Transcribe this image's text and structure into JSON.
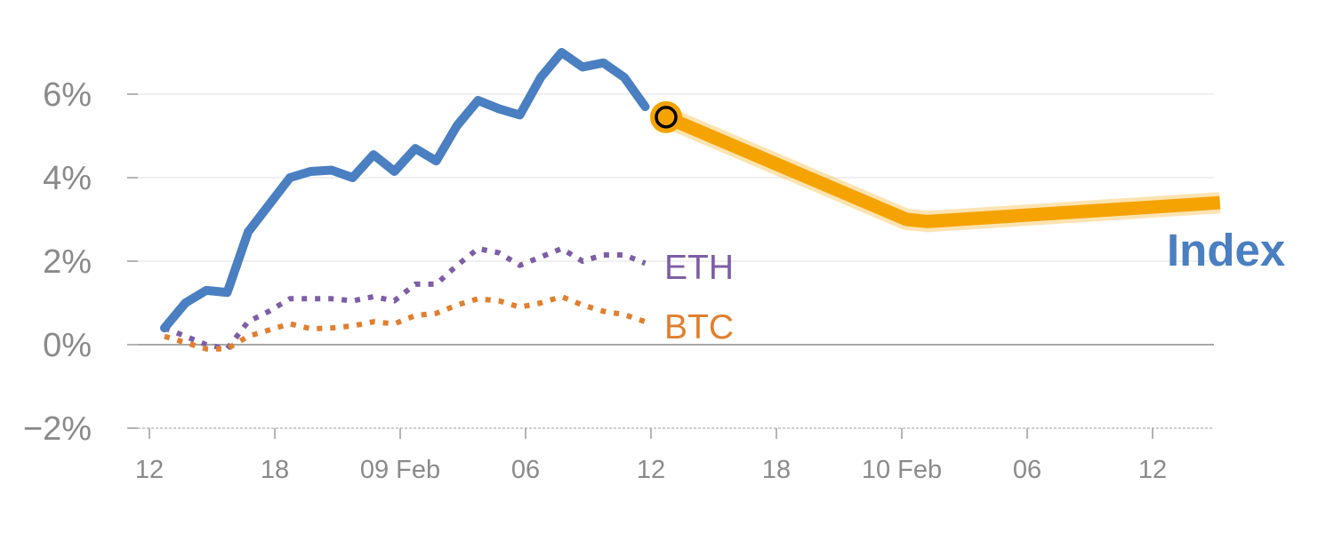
{
  "chart_data": {
    "type": "line",
    "title": "",
    "xlabel": "",
    "ylabel": "",
    "ylim": [
      -2,
      7.5
    ],
    "grid": true,
    "x_tick_labels": [
      "12",
      "18",
      "09 Feb",
      "06",
      "12",
      "18",
      "10 Feb",
      "06",
      "12"
    ],
    "y_ticks": [
      -2,
      0,
      2,
      4,
      6
    ],
    "y_tick_labels": [
      "−2%",
      "0%",
      "2%",
      "4%",
      "6%"
    ],
    "x_index": [
      0,
      1,
      2,
      3,
      4,
      5,
      6,
      7,
      8,
      9,
      10,
      11,
      12,
      13,
      14,
      15,
      16,
      17,
      18,
      19,
      20,
      21,
      22,
      23
    ],
    "series": [
      {
        "name": "Index",
        "color": "#4a7fc1",
        "style": "solid",
        "values": [
          0.4,
          1.0,
          1.3,
          1.25,
          2.7,
          3.35,
          4.0,
          4.15,
          4.18,
          4.0,
          4.55,
          4.15,
          4.7,
          4.4,
          5.25,
          5.85,
          5.65,
          5.5,
          6.4,
          7.0,
          6.65,
          6.75,
          6.4,
          5.7
        ]
      },
      {
        "name": "ETH",
        "color": "#7d5ea6",
        "style": "dotted",
        "values": [
          0.4,
          0.2,
          0.0,
          -0.1,
          0.55,
          0.8,
          1.1,
          1.1,
          1.1,
          1.05,
          1.15,
          1.05,
          1.45,
          1.45,
          1.9,
          2.3,
          2.2,
          1.9,
          2.1,
          2.3,
          2.0,
          2.15,
          2.15,
          1.95
        ]
      },
      {
        "name": "BTC",
        "color": "#e07f2f",
        "style": "dotted",
        "values": [
          0.2,
          0.05,
          -0.1,
          -0.1,
          0.2,
          0.35,
          0.5,
          0.38,
          0.4,
          0.45,
          0.55,
          0.5,
          0.7,
          0.75,
          0.95,
          1.1,
          1.05,
          0.9,
          1.0,
          1.15,
          0.95,
          0.8,
          0.72,
          0.55
        ]
      }
    ],
    "forecast": {
      "color": "#f5a300",
      "x_index": [
        24,
        35.5,
        36.5,
        50.5
      ],
      "values": [
        5.45,
        3.0,
        2.95,
        3.4
      ]
    },
    "end_labels": {
      "eth": "ETH",
      "btc": "BTC",
      "index": "Index"
    }
  }
}
